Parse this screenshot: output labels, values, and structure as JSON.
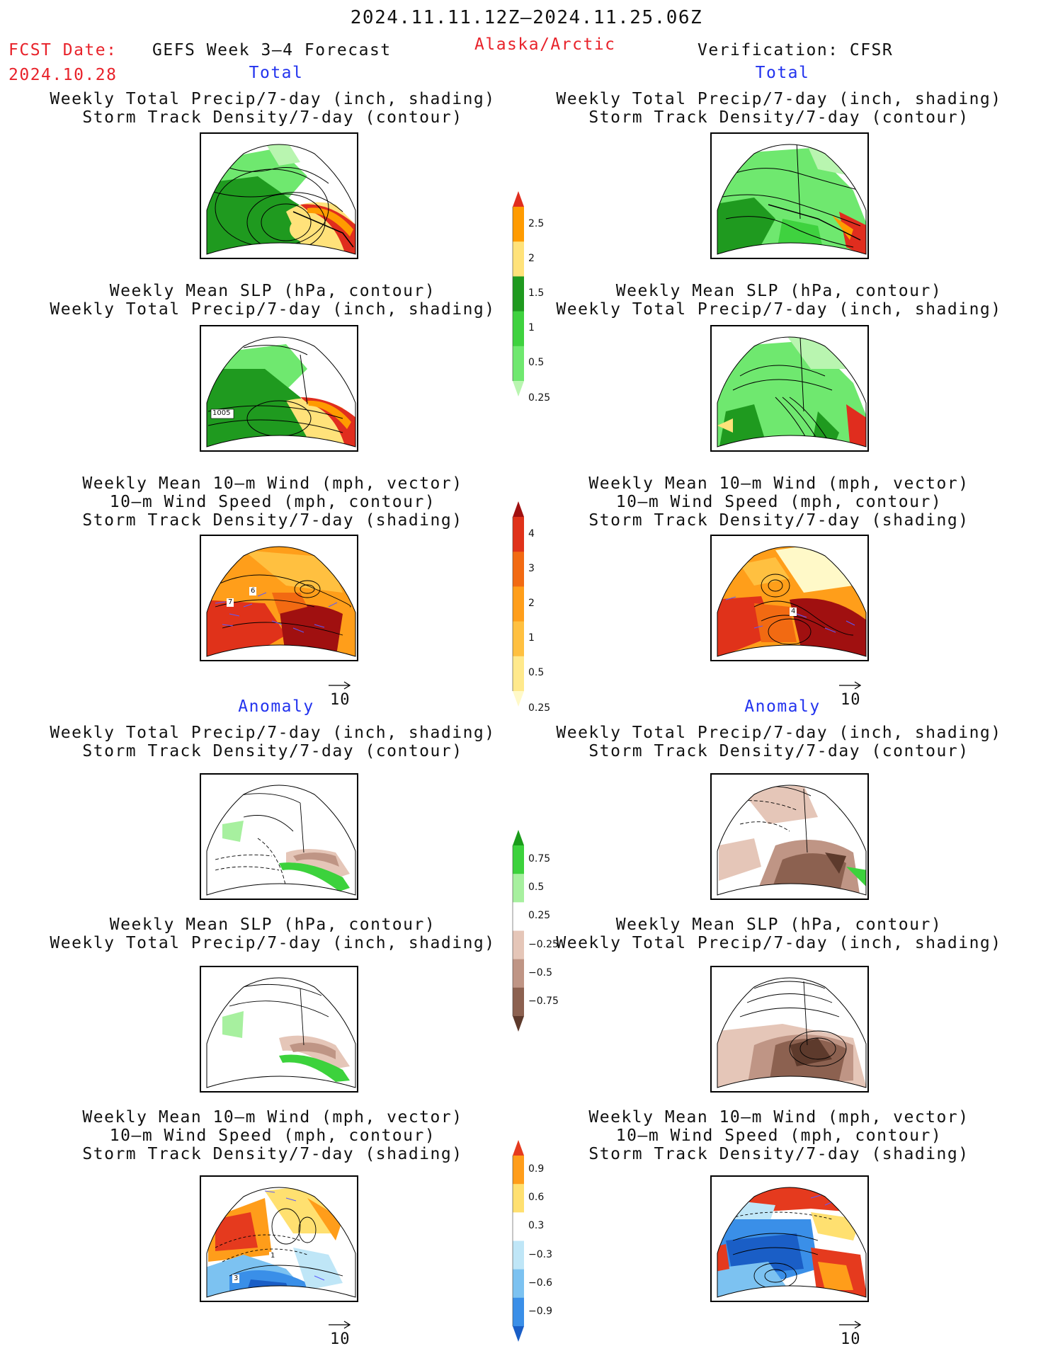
{
  "header": {
    "date_range": "2024.11.11.12Z–2024.11.25.06Z",
    "fcst_label": "FCST Date:",
    "fcst_date": "2024.10.28",
    "forecast_title": "GEFS Week 3–4 Forecast",
    "region": "Alaska/Arctic",
    "verification": "Verification: CFSR"
  },
  "sections": {
    "total": "Total",
    "anomaly": "Anomaly"
  },
  "titles": {
    "precip_storm": "Weekly Total Precip/7-day (inch, shading)\nStorm Track Density/7-day (contour)",
    "slp_precip": "Weekly Mean SLP (hPa, contour)\nWeekly Total Precip/7-day (inch, shading)",
    "wind": "Weekly Mean 10–m Wind (mph, vector)\n10–m Wind Speed (mph, contour)\nStorm Track Density/7-day (shading)"
  },
  "panel_labels": {
    "slp_contour": "1005",
    "wind_l1": "7",
    "wind_l2": "6",
    "wind_r1": "4",
    "anom_wind_l1": "3",
    "anom_wind_l2": "1"
  },
  "vector_ref": "10",
  "colorbars": {
    "precip_total": {
      "labels": [
        "2.5",
        "2",
        "1.5",
        "1",
        "0.5",
        "0.25"
      ],
      "colors": [
        "#e02d1e",
        "#ff9b00",
        "#ffe27a",
        "#1f9a1f",
        "#3fd23f",
        "#6fe86f",
        "#b9f5b0"
      ]
    },
    "storm_total": {
      "labels": [
        "4",
        "3",
        "2",
        "1",
        "0.5",
        "0.25"
      ],
      "colors": [
        "#a01010",
        "#e0321a",
        "#f26a12",
        "#ff9e1a",
        "#ffc040",
        "#ffe98c",
        "#fff9c8"
      ]
    },
    "precip_anom": {
      "labels": [
        "0.75",
        "0.5",
        "0.25",
        "−0.25",
        "−0.5",
        "−0.75"
      ],
      "colors": [
        "#1a9c1a",
        "#3cd23c",
        "#a7f09f",
        "#ffffff",
        "#e5c6b8",
        "#bf9585",
        "#8c6150",
        "#5d3a2c"
      ]
    },
    "storm_anom": {
      "labels": [
        "0.9",
        "0.6",
        "0.3",
        "−0.3",
        "−0.6",
        "−0.9"
      ],
      "colors": [
        "#e53a1e",
        "#ff9d1a",
        "#ffe070",
        "#ffffff",
        "#bfe6f7",
        "#7cc2f1",
        "#3a8fe8",
        "#1a5ec6"
      ]
    }
  },
  "colors": {
    "accent_red": "#e8222a",
    "accent_blue": "#2233ee",
    "vector_color": "#5a5aff"
  }
}
